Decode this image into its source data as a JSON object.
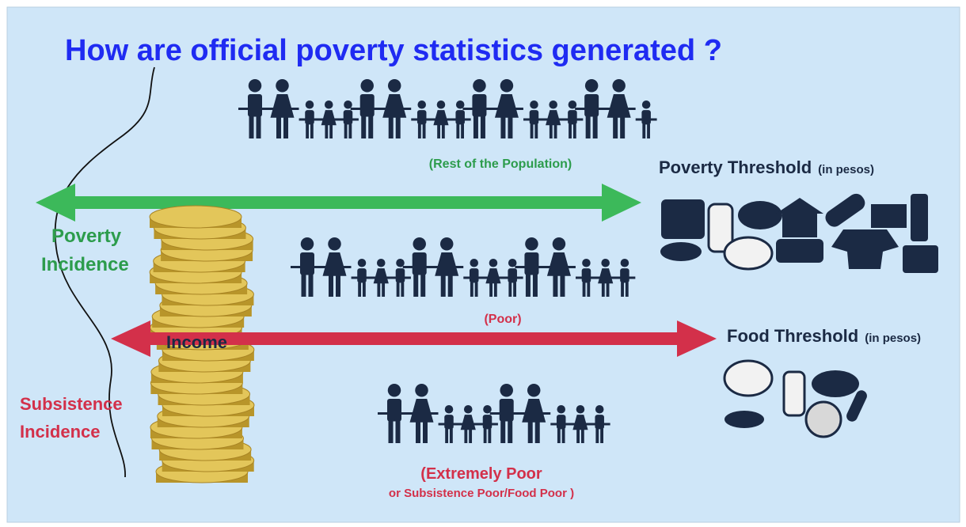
{
  "title": "How are official poverty statistics generated ?",
  "groups": [
    {
      "lines": [
        "(Rest of the Population)"
      ]
    },
    {
      "lines": [
        "(Poor)"
      ]
    },
    {
      "lines": [
        "(Extremely Poor",
        "or Subsistence Poor/Food Poor )"
      ]
    }
  ],
  "thresholds": [
    {
      "name": "Poverty Threshold",
      "unit": "(in pesos)"
    },
    {
      "name": "Food Threshold",
      "unit": "(in pesos)"
    }
  ],
  "incidence": [
    {
      "lines": [
        "Poverty",
        "Incidence"
      ]
    },
    {
      "lines": [
        "Subsistence",
        "Incidence"
      ]
    }
  ],
  "axis_label": "Income"
}
